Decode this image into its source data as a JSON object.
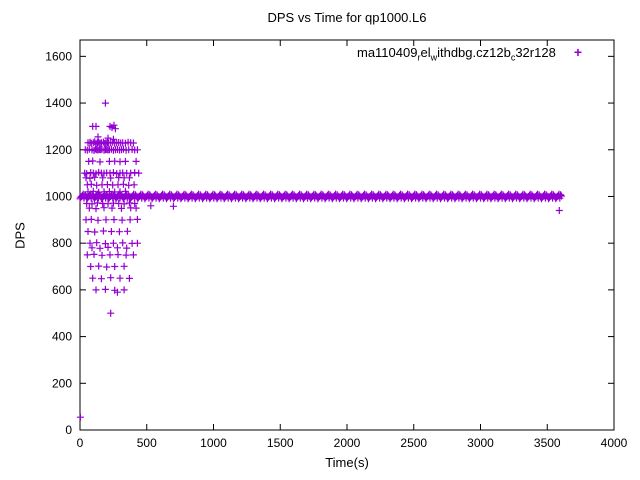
{
  "chart_data": {
    "type": "scatter",
    "title": "DPS vs Time for qp1000.L6",
    "xlabel": "Time(s)",
    "ylabel": "DPS",
    "xlim": [
      0,
      4000
    ],
    "ylim": [
      0,
      1670
    ],
    "x_ticks": [
      0,
      500,
      1000,
      1500,
      2000,
      2500,
      3000,
      3500,
      4000
    ],
    "y_ticks": [
      0,
      200,
      400,
      600,
      800,
      1000,
      1200,
      1400,
      1600
    ],
    "grid": false,
    "marker": "plus",
    "color": "#9400D3",
    "legend": {
      "position": "top-right-inside",
      "marker_glyph": "+",
      "label_text": "ma110409relwithdbg.cz12bc32r128",
      "label_parts": [
        {
          "text": "ma110409",
          "sub": false
        },
        {
          "text": "r",
          "sub": true
        },
        {
          "text": "el",
          "sub": false
        },
        {
          "text": "w",
          "sub": true
        },
        {
          "text": "ithdbg.cz12b",
          "sub": false
        },
        {
          "text": "c",
          "sub": true
        },
        {
          "text": "32r128",
          "sub": false
        }
      ]
    },
    "series": [
      {
        "name": "ma110409relwithdbg.cz12bc32r128",
        "band": {
          "y": 1000,
          "x_start": 0,
          "x_end": 3610,
          "step": 6,
          "jitter": [
            -10,
            -4,
            0,
            4,
            10,
            -7,
            7,
            2,
            -2
          ]
        },
        "points": [
          [
            190,
            1400
          ],
          [
            95,
            1300
          ],
          [
            120,
            1300
          ],
          [
            225,
            1300
          ],
          [
            240,
            1295
          ],
          [
            255,
            1305
          ],
          [
            265,
            1290
          ],
          [
            135,
            1255
          ],
          [
            210,
            1250
          ],
          [
            250,
            1245
          ],
          [
            60,
            1230
          ],
          [
            75,
            1232
          ],
          [
            85,
            1228
          ],
          [
            100,
            1230
          ],
          [
            110,
            1234
          ],
          [
            120,
            1226
          ],
          [
            130,
            1230
          ],
          [
            140,
            1232
          ],
          [
            150,
            1228
          ],
          [
            160,
            1230
          ],
          [
            175,
            1233
          ],
          [
            185,
            1227
          ],
          [
            195,
            1230
          ],
          [
            205,
            1231
          ],
          [
            215,
            1229
          ],
          [
            230,
            1230
          ],
          [
            245,
            1232
          ],
          [
            260,
            1228
          ],
          [
            275,
            1230
          ],
          [
            290,
            1231
          ],
          [
            305,
            1229
          ],
          [
            320,
            1230
          ],
          [
            340,
            1228
          ],
          [
            360,
            1232
          ],
          [
            380,
            1230
          ],
          [
            400,
            1229
          ],
          [
            40,
            1200
          ],
          [
            55,
            1198
          ],
          [
            70,
            1202
          ],
          [
            90,
            1200
          ],
          [
            105,
            1197
          ],
          [
            115,
            1203
          ],
          [
            125,
            1200
          ],
          [
            135,
            1199
          ],
          [
            145,
            1201
          ],
          [
            155,
            1200
          ],
          [
            165,
            1202
          ],
          [
            180,
            1198
          ],
          [
            190,
            1200
          ],
          [
            200,
            1201
          ],
          [
            210,
            1199
          ],
          [
            220,
            1200
          ],
          [
            235,
            1202
          ],
          [
            250,
            1198
          ],
          [
            265,
            1200
          ],
          [
            280,
            1201
          ],
          [
            295,
            1199
          ],
          [
            310,
            1200
          ],
          [
            325,
            1202
          ],
          [
            345,
            1198
          ],
          [
            365,
            1200
          ],
          [
            390,
            1201
          ],
          [
            410,
            1199
          ],
          [
            430,
            1200
          ],
          [
            65,
            1150
          ],
          [
            95,
            1152
          ],
          [
            150,
            1148
          ],
          [
            220,
            1150
          ],
          [
            260,
            1151
          ],
          [
            300,
            1149
          ],
          [
            340,
            1150
          ],
          [
            420,
            1150
          ],
          [
            35,
            1100
          ],
          [
            50,
            1098
          ],
          [
            80,
            1102
          ],
          [
            100,
            1100
          ],
          [
            120,
            1097
          ],
          [
            140,
            1103
          ],
          [
            160,
            1100
          ],
          [
            180,
            1099
          ],
          [
            200,
            1101
          ],
          [
            225,
            1100
          ],
          [
            250,
            1102
          ],
          [
            275,
            1098
          ],
          [
            300,
            1100
          ],
          [
            320,
            1101
          ],
          [
            350,
            1099
          ],
          [
            380,
            1100
          ],
          [
            410,
            1102
          ],
          [
            440,
            1100
          ],
          [
            45,
            1080
          ],
          [
            75,
            1078
          ],
          [
            110,
            1082
          ],
          [
            170,
            1080
          ],
          [
            230,
            1079
          ],
          [
            290,
            1081
          ],
          [
            330,
            1080
          ],
          [
            370,
            1080
          ],
          [
            55,
            1050
          ],
          [
            85,
            1052
          ],
          [
            125,
            1048
          ],
          [
            165,
            1050
          ],
          [
            205,
            1051
          ],
          [
            245,
            1049
          ],
          [
            285,
            1050
          ],
          [
            325,
            1052
          ],
          [
            365,
            1048
          ],
          [
            405,
            1050
          ],
          [
            60,
            1020
          ],
          [
            100,
            1022
          ],
          [
            140,
            1018
          ],
          [
            180,
            1020
          ],
          [
            220,
            1021
          ],
          [
            260,
            1019
          ],
          [
            300,
            1020
          ],
          [
            340,
            1022
          ],
          [
            50,
            970
          ],
          [
            90,
            968
          ],
          [
            130,
            972
          ],
          [
            170,
            970
          ],
          [
            210,
            969
          ],
          [
            250,
            971
          ],
          [
            290,
            970
          ],
          [
            330,
            968
          ],
          [
            370,
            972
          ],
          [
            410,
            970
          ],
          [
            70,
            950
          ],
          [
            120,
            948
          ],
          [
            180,
            952
          ],
          [
            240,
            950
          ],
          [
            310,
            949
          ],
          [
            380,
            951
          ],
          [
            420,
            950
          ],
          [
            45,
            900
          ],
          [
            85,
            902
          ],
          [
            135,
            898
          ],
          [
            195,
            900
          ],
          [
            255,
            901
          ],
          [
            315,
            899
          ],
          [
            375,
            900
          ],
          [
            430,
            902
          ],
          [
            60,
            850
          ],
          [
            110,
            848
          ],
          [
            175,
            852
          ],
          [
            235,
            850
          ],
          [
            295,
            849
          ],
          [
            355,
            851
          ],
          [
            75,
            800
          ],
          [
            125,
            802
          ],
          [
            190,
            798
          ],
          [
            250,
            800
          ],
          [
            320,
            801
          ],
          [
            390,
            799
          ],
          [
            430,
            800
          ],
          [
            90,
            780
          ],
          [
            150,
            778
          ],
          [
            210,
            782
          ],
          [
            280,
            780
          ],
          [
            350,
            779
          ],
          [
            55,
            750
          ],
          [
            105,
            752
          ],
          [
            165,
            748
          ],
          [
            225,
            750
          ],
          [
            285,
            751
          ],
          [
            345,
            749
          ],
          [
            400,
            750
          ],
          [
            80,
            700
          ],
          [
            140,
            702
          ],
          [
            200,
            698
          ],
          [
            260,
            700
          ],
          [
            330,
            701
          ],
          [
            95,
            650
          ],
          [
            160,
            648
          ],
          [
            230,
            652
          ],
          [
            300,
            650
          ],
          [
            370,
            649
          ],
          [
            120,
            600
          ],
          [
            190,
            602
          ],
          [
            260,
            598
          ],
          [
            330,
            600
          ],
          [
            280,
            590
          ],
          [
            230,
            500
          ],
          [
            3,
            55
          ],
          [
            530,
            960
          ],
          [
            700,
            958
          ],
          [
            3590,
            940
          ]
        ]
      }
    ]
  }
}
